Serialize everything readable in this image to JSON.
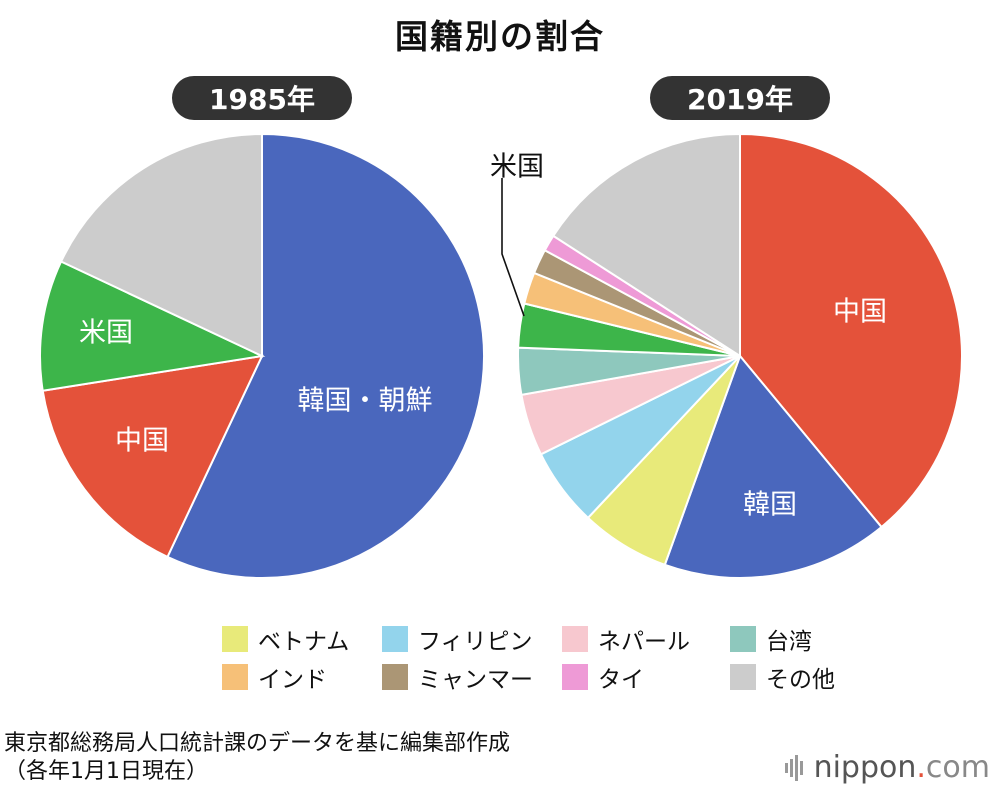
{
  "title": "国籍別の割合",
  "colors": {
    "korea": "#4a67bd",
    "china": "#e4523a",
    "usa": "#3db54a",
    "other": "#cccccc",
    "vietnam": "#e8ea7a",
    "philippines": "#93d4ec",
    "nepal": "#f7c8cf",
    "taiwan": "#8ec8bd",
    "india": "#f6c078",
    "myanmar": "#ab9675",
    "thailand": "#ee9ad6"
  },
  "chart_data": [
    {
      "type": "pie",
      "label": "1985年",
      "slices": [
        {
          "key": "korea",
          "label": "韓国・朝鮮",
          "value": 57.0
        },
        {
          "key": "china",
          "label": "中国",
          "value": 15.5
        },
        {
          "key": "usa",
          "label": "米国",
          "value": 9.5
        },
        {
          "key": "other",
          "label": "その他",
          "value": 18.0
        }
      ]
    },
    {
      "type": "pie",
      "label": "2019年",
      "slices": [
        {
          "key": "china",
          "label": "中国",
          "value": 39.0
        },
        {
          "key": "korea",
          "label": "韓国",
          "value": 16.5
        },
        {
          "key": "vietnam",
          "label": "ベトナム",
          "value": 6.5
        },
        {
          "key": "philippines",
          "label": "フィリピン",
          "value": 5.7
        },
        {
          "key": "nepal",
          "label": "ネパール",
          "value": 4.5
        },
        {
          "key": "taiwan",
          "label": "台湾",
          "value": 3.4
        },
        {
          "key": "usa",
          "label": "米国",
          "value": 3.2
        },
        {
          "key": "india",
          "label": "インド",
          "value": 2.3
        },
        {
          "key": "myanmar",
          "label": "ミャンマー",
          "value": 1.8
        },
        {
          "key": "thailand",
          "label": "タイ",
          "value": 1.2
        },
        {
          "key": "other",
          "label": "その他",
          "value": 15.9
        }
      ]
    }
  ],
  "legend": [
    {
      "key": "vietnam",
      "label": "ベトナム"
    },
    {
      "key": "philippines",
      "label": "フィリピン"
    },
    {
      "key": "nepal",
      "label": "ネパール"
    },
    {
      "key": "taiwan",
      "label": "台湾"
    },
    {
      "key": "india",
      "label": "インド"
    },
    {
      "key": "myanmar",
      "label": "ミャンマー"
    },
    {
      "key": "thailand",
      "label": "タイ"
    },
    {
      "key": "other",
      "label": "その他"
    }
  ],
  "source": {
    "line1": "東京都総務局人口統計課のデータを基に編集部作成",
    "line2": "（各年1月1日現在）"
  },
  "logo": {
    "name": "nippon",
    "dot": ".",
    "tld": "com"
  }
}
